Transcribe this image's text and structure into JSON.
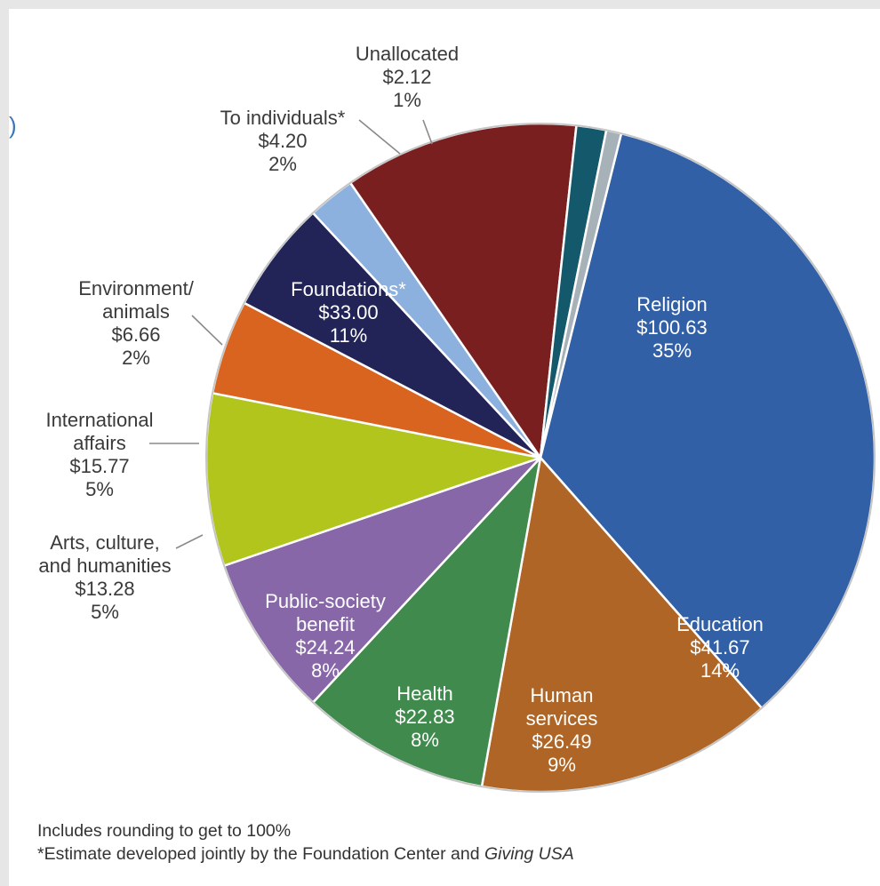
{
  "edge_mark": ")",
  "chart_data": {
    "type": "pie",
    "unit": "$",
    "slices": [
      {
        "name": "Religion",
        "value_text": "$100.63",
        "value": 100.63,
        "pct_text": "35%",
        "color": "#3260a7"
      },
      {
        "name": "Education",
        "value_text": "$41.67",
        "value": 41.67,
        "pct_text": "14%",
        "color": "#ae6525"
      },
      {
        "name": "Human services",
        "value_text": "$26.49",
        "value": 26.49,
        "pct_text": "9%",
        "color": "#3f8a4c"
      },
      {
        "name": "Health",
        "value_text": "$22.83",
        "value": 22.83,
        "pct_text": "8%",
        "color": "#8767a8"
      },
      {
        "name": "Public-society benefit",
        "value_text": "$24.24",
        "value": 24.24,
        "pct_text": "8%",
        "color": "#b1c51c"
      },
      {
        "name": "Arts, culture, and humanities",
        "value_text": "$13.28",
        "value": 13.28,
        "pct_text": "5%",
        "color": "#d9641f"
      },
      {
        "name": "International affairs",
        "value_text": "$15.77",
        "value": 15.77,
        "pct_text": "5%",
        "color": "#222357"
      },
      {
        "name": "Environment/ animals",
        "value_text": "$6.66",
        "value": 6.66,
        "pct_text": "2%",
        "color": "#8db1de"
      },
      {
        "name": "Foundations*",
        "value_text": "$33.00",
        "value": 33.0,
        "pct_text": "11%",
        "color": "#7a1f1f"
      },
      {
        "name": "To individuals*",
        "value_text": "$4.20",
        "value": 4.2,
        "pct_text": "2%",
        "color": "#14586b"
      },
      {
        "name": "Unallocated",
        "value_text": "$2.12",
        "value": 2.12,
        "pct_text": "1%",
        "color": "#a7b2b8"
      }
    ],
    "label_lines": {
      "Religion": [
        "Religion"
      ],
      "Education": [
        "Education"
      ],
      "Human services": [
        "Human",
        "services"
      ],
      "Health": [
        "Health"
      ],
      "Public-society benefit": [
        "Public-society",
        "benefit"
      ],
      "Arts, culture, and humanities": [
        "Arts, culture,",
        "and humanities"
      ],
      "International affairs": [
        "International",
        "affairs"
      ],
      "Environment/ animals": [
        "Environment/",
        "animals"
      ],
      "Foundations*": [
        "Foundations*"
      ],
      "To individuals*": [
        "To individuals*"
      ],
      "Unallocated": [
        "Unallocated"
      ]
    }
  },
  "footnotes": {
    "line1": "Includes rounding to get to 100%",
    "line2_prefix": "*Estimate developed jointly by the Foundation Center and ",
    "line2_italic": "Giving USA"
  }
}
